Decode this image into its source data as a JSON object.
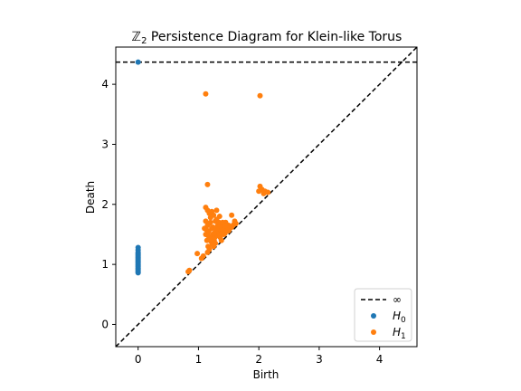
{
  "chart_data": {
    "type": "scatter",
    "title": "ℤ₂ Persistence Diagram for Klein-like Torus",
    "title_parts": {
      "symbol": "ℤ",
      "subscript": "2",
      "rest": " Persistence Diagram for Klein-like Torus"
    },
    "xlabel": "Birth",
    "ylabel": "Death",
    "xlim": [
      -0.37,
      4.62
    ],
    "ylim": [
      -0.37,
      4.62
    ],
    "xticks": [
      0,
      1,
      2,
      3,
      4
    ],
    "yticks": [
      0,
      1,
      2,
      3,
      4
    ],
    "grid": false,
    "infinity_line_y": 4.37,
    "diagonal": true,
    "legend_position": "lower right",
    "legend": [
      {
        "key": "inf",
        "label": "∞",
        "style": "dashed-line",
        "color": "#000000"
      },
      {
        "key": "h0",
        "label": "H",
        "subscript": "0",
        "style": "dot",
        "color": "#1f77b4"
      },
      {
        "key": "h1",
        "label": "H",
        "subscript": "1",
        "style": "dot",
        "color": "#ff7f0e"
      }
    ],
    "series": [
      {
        "name": "H0",
        "color": "#1f77b4",
        "points": [
          [
            0,
            4.37
          ],
          [
            0,
            0.86
          ],
          [
            0,
            0.88
          ],
          [
            0,
            0.9
          ],
          [
            0,
            0.92
          ],
          [
            0,
            0.94
          ],
          [
            0,
            0.96
          ],
          [
            0,
            0.98
          ],
          [
            0,
            1.0
          ],
          [
            0,
            1.02
          ],
          [
            0,
            1.04
          ],
          [
            0,
            1.06
          ],
          [
            0,
            1.08
          ],
          [
            0,
            1.1
          ],
          [
            0,
            1.12
          ],
          [
            0,
            1.14
          ],
          [
            0,
            1.16
          ],
          [
            0,
            1.18
          ],
          [
            0,
            1.2
          ],
          [
            0,
            1.24
          ],
          [
            0,
            1.28
          ]
        ]
      },
      {
        "name": "H1",
        "color": "#ff7f0e",
        "points": [
          [
            1.12,
            3.84
          ],
          [
            2.02,
            3.81
          ],
          [
            1.15,
            2.33
          ],
          [
            2.02,
            2.3
          ],
          [
            2.05,
            2.25
          ],
          [
            2.1,
            2.22
          ],
          [
            2.15,
            2.2
          ],
          [
            2.0,
            2.22
          ],
          [
            2.08,
            2.18
          ],
          [
            0.85,
            0.9
          ],
          [
            0.83,
            0.88
          ],
          [
            0.98,
            1.18
          ],
          [
            1.05,
            1.1
          ],
          [
            1.08,
            1.14
          ],
          [
            1.12,
            1.95
          ],
          [
            1.15,
            1.9
          ],
          [
            1.18,
            1.85
          ],
          [
            1.22,
            1.88
          ],
          [
            1.25,
            1.82
          ],
          [
            1.3,
            1.9
          ],
          [
            1.35,
            1.8
          ],
          [
            1.55,
            1.82
          ],
          [
            1.6,
            1.72
          ],
          [
            1.45,
            1.7
          ],
          [
            1.5,
            1.65
          ],
          [
            1.1,
            1.6
          ],
          [
            1.12,
            1.5
          ],
          [
            1.14,
            1.4
          ],
          [
            1.16,
            1.3
          ],
          [
            1.18,
            1.25
          ],
          [
            1.15,
            1.2
          ],
          [
            1.2,
            1.7
          ],
          [
            1.22,
            1.6
          ],
          [
            1.24,
            1.5
          ],
          [
            1.26,
            1.4
          ],
          [
            1.28,
            1.35
          ],
          [
            1.25,
            1.3
          ],
          [
            1.3,
            1.75
          ],
          [
            1.32,
            1.65
          ],
          [
            1.34,
            1.55
          ],
          [
            1.36,
            1.45
          ],
          [
            1.38,
            1.4
          ],
          [
            1.4,
            1.6
          ],
          [
            1.42,
            1.5
          ],
          [
            1.44,
            1.52
          ],
          [
            1.46,
            1.55
          ],
          [
            1.48,
            1.58
          ],
          [
            1.2,
            1.78
          ],
          [
            1.28,
            1.72
          ],
          [
            1.33,
            1.68
          ],
          [
            1.38,
            1.62
          ],
          [
            1.43,
            1.58
          ],
          [
            1.12,
            1.72
          ],
          [
            1.15,
            1.65
          ],
          [
            1.17,
            1.55
          ],
          [
            1.19,
            1.45
          ],
          [
            1.21,
            1.38
          ],
          [
            1.23,
            1.33
          ],
          [
            1.27,
            1.45
          ],
          [
            1.29,
            1.55
          ],
          [
            1.31,
            1.48
          ],
          [
            1.35,
            1.5
          ],
          [
            1.37,
            1.58
          ],
          [
            1.39,
            1.52
          ],
          [
            1.41,
            1.66
          ],
          [
            1.52,
            1.6
          ],
          [
            1.55,
            1.62
          ],
          [
            1.5,
            1.56
          ],
          [
            1.58,
            1.66
          ],
          [
            1.62,
            1.68
          ],
          [
            1.47,
            1.62
          ],
          [
            1.24,
            1.62
          ],
          [
            1.18,
            1.68
          ],
          [
            1.13,
            1.58
          ],
          [
            1.16,
            1.48
          ],
          [
            1.2,
            1.42
          ],
          [
            1.26,
            1.52
          ],
          [
            1.3,
            1.6
          ],
          [
            1.34,
            1.7
          ],
          [
            1.36,
            1.64
          ],
          [
            1.4,
            1.7
          ],
          [
            1.44,
            1.64
          ]
        ]
      }
    ]
  }
}
